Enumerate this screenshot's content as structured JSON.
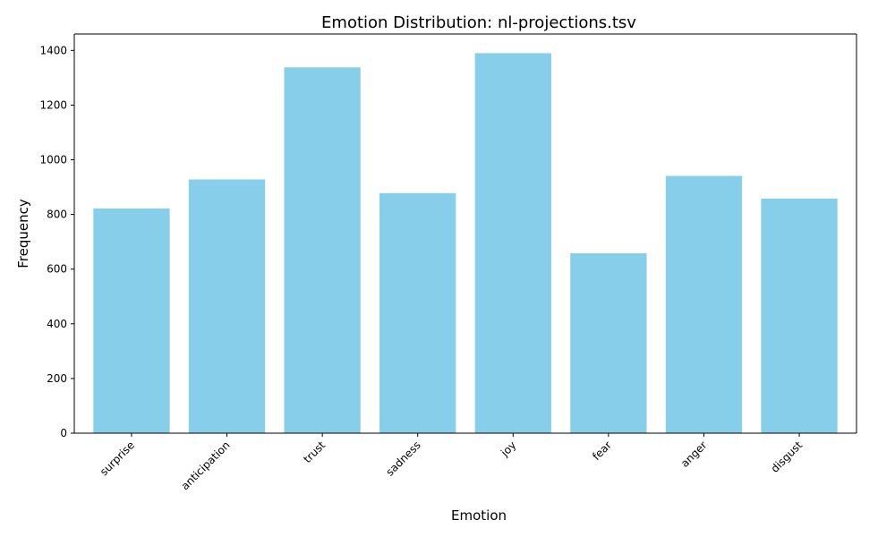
{
  "chart_data": {
    "type": "bar",
    "title": "Emotion Distribution: nl-projections.tsv",
    "xlabel": "Emotion",
    "ylabel": "Frequency",
    "categories": [
      "surprise",
      "anticipation",
      "trust",
      "sadness",
      "joy",
      "fear",
      "anger",
      "disgust"
    ],
    "values": [
      822,
      928,
      1338,
      878,
      1390,
      658,
      941,
      858
    ],
    "ylim": [
      0,
      1460
    ],
    "yticks": [
      0,
      200,
      400,
      600,
      800,
      1000,
      1200,
      1400
    ],
    "bar_color": "#87ceeb",
    "grid": false,
    "legend": false
  }
}
